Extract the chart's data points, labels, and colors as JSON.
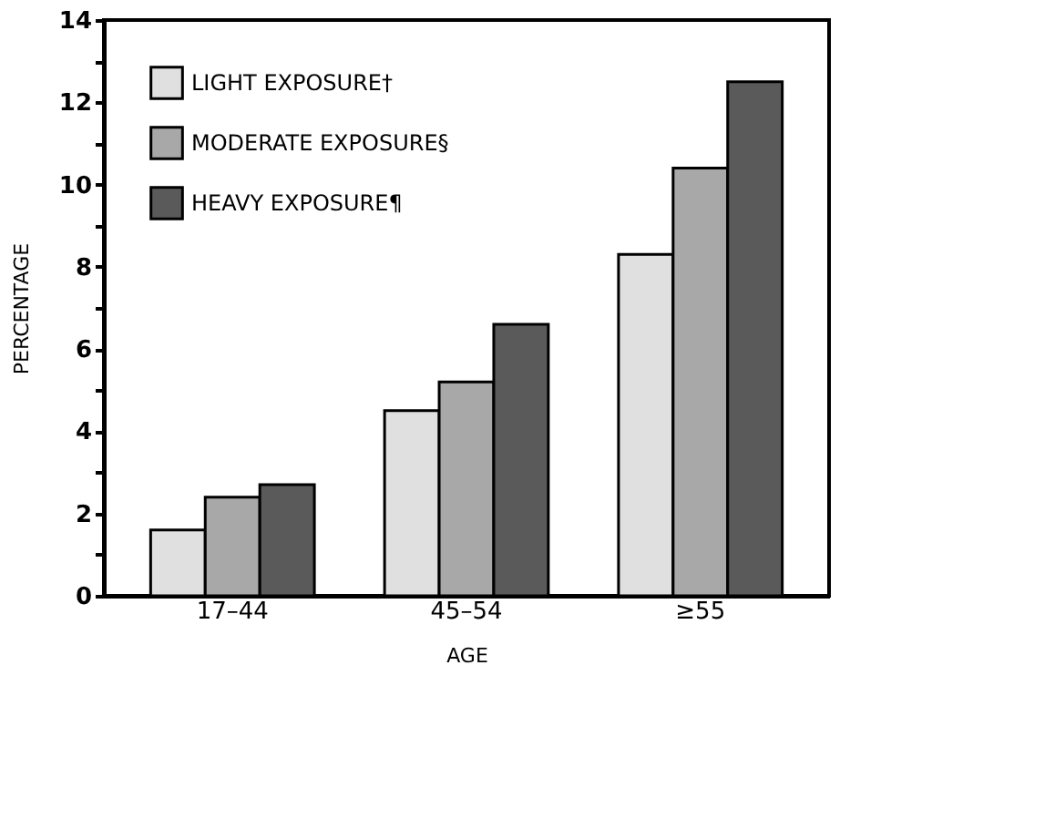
{
  "chart_data": {
    "type": "bar",
    "xlabel": "AGE",
    "ylabel": "PERCENTAGE",
    "categories": [
      "17–44",
      "45–54",
      "≥55"
    ],
    "series": [
      {
        "name": "LIGHT EXPOSURE†",
        "color": "#e0e0e0",
        "values": [
          1.6,
          4.5,
          8.3
        ]
      },
      {
        "name": "MODERATE EXPOSURE§",
        "color": "#a8a8a8",
        "values": [
          2.4,
          5.2,
          10.4
        ]
      },
      {
        "name": "HEAVY EXPOSURE¶",
        "color": "#5a5a5a",
        "values": [
          2.7,
          6.6,
          12.5
        ]
      }
    ],
    "ylim": [
      0,
      14
    ],
    "yticks": [
      0,
      {
        "value": 1,
        "label": null
      },
      2,
      {
        "value": 3,
        "label": null
      },
      4,
      {
        "value": 5,
        "label": null
      },
      6,
      {
        "value": 7,
        "label": null
      },
      8,
      {
        "value": 9,
        "label": null
      },
      10,
      {
        "value": 11,
        "label": null
      },
      12,
      {
        "value": 13,
        "label": null
      },
      14
    ],
    "grid": false,
    "legend": "top left"
  }
}
